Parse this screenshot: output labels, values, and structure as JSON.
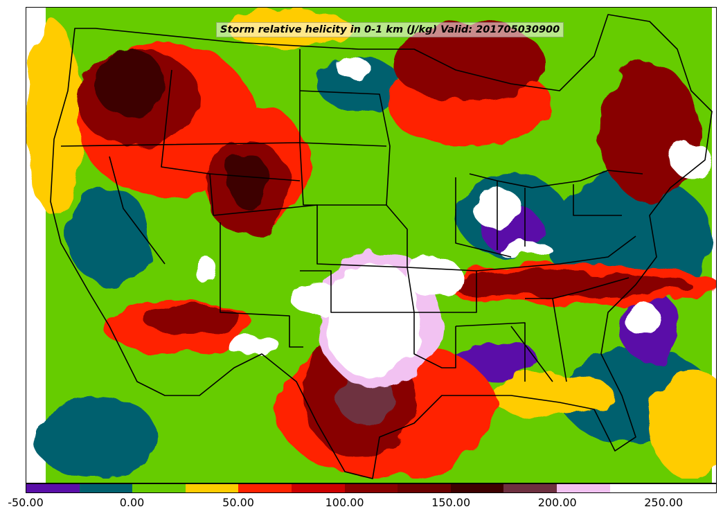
{
  "title": "Storm relative helicity in 0-1 km (J/kg) Valid: 201705030900",
  "colorbar": {
    "min": -50,
    "max": 275,
    "step": 25,
    "colors": [
      "#5a0fa8",
      "#00606e",
      "#66cc00",
      "#ffcc00",
      "#ff2200",
      "#cc0000",
      "#880000",
      "#6b0000",
      "#3d0000",
      "#6e3040",
      "#f2c2f2",
      "#ffffff",
      "#ffffff"
    ],
    "tick_values": [
      -50,
      0,
      50,
      100,
      150,
      200,
      250
    ],
    "tick_labels": [
      "-50.00",
      "0.00",
      "50.00",
      "100.00",
      "150.00",
      "200.00",
      "250.00"
    ]
  },
  "map": {
    "region": "Contiguous United States",
    "field": "0-1 km storm relative helicity"
  }
}
